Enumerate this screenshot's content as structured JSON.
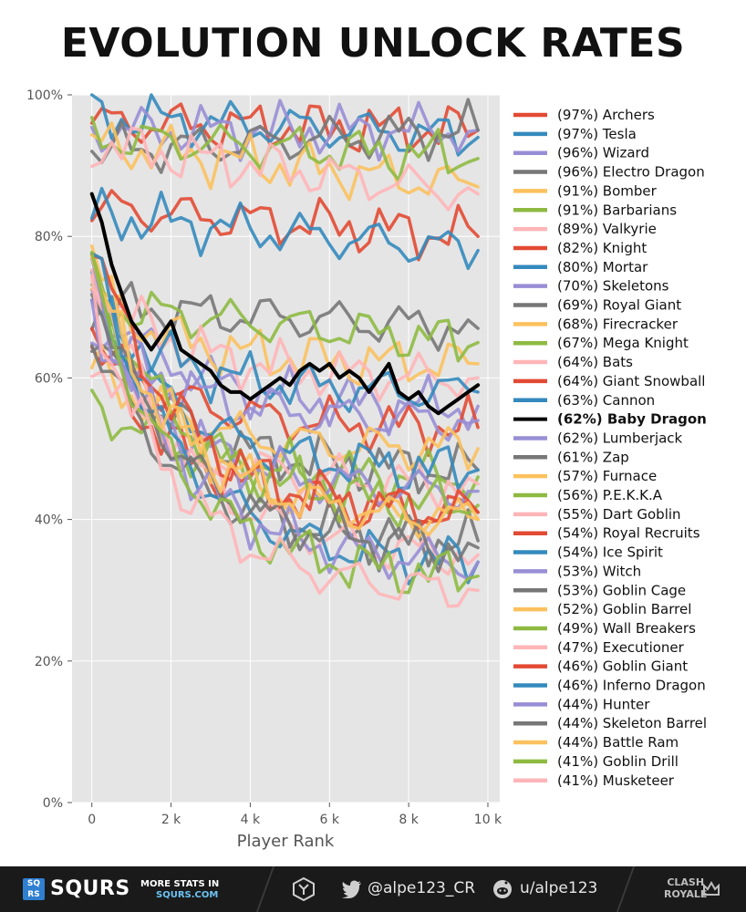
{
  "header": {
    "title": "EVOLUTION UNLOCK RATES"
  },
  "chart_data": {
    "type": "line",
    "title": "EVOLUTION UNLOCK RATES",
    "xlabel": "Player Rank",
    "ylabel": "",
    "xlim": [
      -500,
      10300
    ],
    "ylim": [
      0,
      100
    ],
    "x_ticks": [
      0,
      2000,
      4000,
      6000,
      8000,
      10000
    ],
    "x_tick_labels": [
      "0",
      "2 k",
      "4 k",
      "6 k",
      "8 k",
      "10 k"
    ],
    "y_ticks": [
      0,
      20,
      40,
      60,
      80,
      100
    ],
    "y_tick_labels": [
      "0%",
      "20%",
      "40%",
      "60%",
      "80%",
      "100%"
    ],
    "grid": true,
    "legend_position": "right",
    "x": [
      0,
      250,
      500,
      750,
      1000,
      1250,
      1500,
      1750,
      2000,
      2250,
      2500,
      2750,
      3000,
      3250,
      3500,
      3750,
      4000,
      4250,
      4500,
      4750,
      5000,
      5250,
      5500,
      5750,
      6000,
      6250,
      6500,
      6750,
      7000,
      7250,
      7500,
      7750,
      8000,
      8250,
      8500,
      8750,
      9000,
      9250,
      9500,
      9750
    ],
    "series": [
      {
        "name": "(97%) Archers",
        "color": "#e24a33",
        "start": 96,
        "end": 95
      },
      {
        "name": "(97%) Tesla",
        "color": "#348abd",
        "start": 97,
        "end": 94
      },
      {
        "name": "(96%) Wizard",
        "color": "#988ed5",
        "start": 95,
        "end": 95
      },
      {
        "name": "(96%) Electro Dragon",
        "color": "#777777",
        "start": 92,
        "end": 95
      },
      {
        "name": "(91%) Bomber",
        "color": "#fbc15e",
        "start": 93,
        "end": 87
      },
      {
        "name": "(91%) Barbarians",
        "color": "#8eba42",
        "start": 94,
        "end": 91
      },
      {
        "name": "(89%) Valkyrie",
        "color": "#ffb5b8",
        "start": 93,
        "end": 86
      },
      {
        "name": "(82%) Knight",
        "color": "#e24a33",
        "start": 84,
        "end": 80
      },
      {
        "name": "(80%) Mortar",
        "color": "#348abd",
        "start": 83,
        "end": 78
      },
      {
        "name": "(70%) Skeletons",
        "color": "#988ed5",
        "start": 72,
        "end": 56
      },
      {
        "name": "(69%) Royal Giant",
        "color": "#777777",
        "start": 70,
        "end": 67
      },
      {
        "name": "(68%) Firecracker",
        "color": "#fbc15e",
        "start": 72,
        "end": 62
      },
      {
        "name": "(67%) Mega Knight",
        "color": "#8eba42",
        "start": 70,
        "end": 65
      },
      {
        "name": "(64%) Bats",
        "color": "#ffb5b8",
        "start": 74,
        "end": 60
      },
      {
        "name": "(64%) Giant Snowball",
        "color": "#e24a33",
        "start": 65,
        "end": 53
      },
      {
        "name": "(63%) Cannon",
        "color": "#348abd",
        "start": 70,
        "end": 58
      },
      {
        "name": "(62%) Baby Dragon",
        "color": "#000000",
        "start": 86,
        "end": 59,
        "highlight": true
      },
      {
        "name": "(62%) Lumberjack",
        "color": "#988ed5",
        "start": 68,
        "end": 54
      },
      {
        "name": "(61%) Zap",
        "color": "#777777",
        "start": 66,
        "end": 47
      },
      {
        "name": "(57%) Furnace",
        "color": "#fbc15e",
        "start": 62,
        "end": 50
      },
      {
        "name": "(56%) P.E.K.K.A",
        "color": "#8eba42",
        "start": 57,
        "end": 46
      },
      {
        "name": "(55%) Dart Goblin",
        "color": "#ffb5b8",
        "start": 63,
        "end": 45
      },
      {
        "name": "(54%) Royal Recruits",
        "color": "#e24a33",
        "start": 66,
        "end": 41
      },
      {
        "name": "(54%) Ice Spirit",
        "color": "#348abd",
        "start": 72,
        "end": 47
      },
      {
        "name": "(53%) Witch",
        "color": "#988ed5",
        "start": 69,
        "end": 44
      },
      {
        "name": "(53%) Goblin Cage",
        "color": "#777777",
        "start": 66,
        "end": 37
      },
      {
        "name": "(52%) Goblin Barrel",
        "color": "#fbc15e",
        "start": 78,
        "end": 40
      },
      {
        "name": "(49%) Wall Breakers",
        "color": "#8eba42",
        "start": 76,
        "end": 42
      },
      {
        "name": "(47%) Executioner",
        "color": "#ffb5b8",
        "start": 78,
        "end": 35
      },
      {
        "name": "(46%) Goblin Giant",
        "color": "#e24a33",
        "start": 80,
        "end": 41
      },
      {
        "name": "(46%) Inferno Dragon",
        "color": "#348abd",
        "start": 78,
        "end": 34
      },
      {
        "name": "(44%) Hunter",
        "color": "#988ed5",
        "start": 75,
        "end": 34
      },
      {
        "name": "(44%) Skeleton Barrel",
        "color": "#777777",
        "start": 74,
        "end": 36
      },
      {
        "name": "(44%) Battle Ram",
        "color": "#fbc15e",
        "start": 76,
        "end": 40
      },
      {
        "name": "(41%) Goblin Drill",
        "color": "#8eba42",
        "start": 75,
        "end": 32
      },
      {
        "name": "(41%) Musketeer",
        "color": "#ffb5b8",
        "start": 72,
        "end": 30
      }
    ],
    "baby_dragon_values": [
      86,
      82,
      76,
      72,
      68,
      66,
      64,
      66,
      68,
      64,
      63,
      62,
      61,
      59,
      58,
      58,
      57,
      58,
      59,
      60,
      59,
      61,
      62,
      61,
      62,
      60,
      61,
      60,
      58,
      60,
      62,
      58,
      57,
      58,
      56,
      55,
      56,
      57,
      58,
      59
    ]
  },
  "footer": {
    "brand_badge": "SQ RS",
    "brand_name": "SQURS",
    "promo_line1": "MORE STATS IN",
    "promo_line2": "SQURS.COM",
    "twitter_handle": "@alpe123_CR",
    "reddit_handle": "u/alpe123",
    "game_logo_line1": "CLASH",
    "game_logo_line2": "ROYALE"
  }
}
